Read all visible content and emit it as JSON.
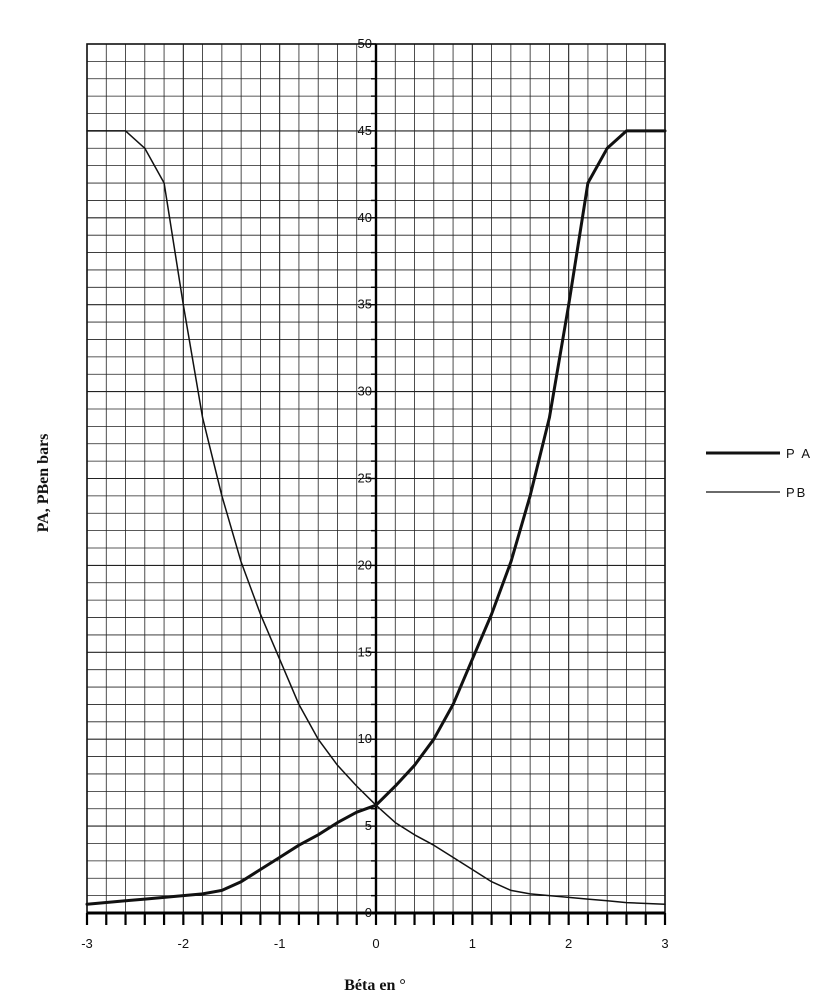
{
  "chart_data": {
    "type": "line",
    "title": "",
    "xlabel": "Béta en °",
    "ylabel": "PA, PBen bars",
    "xlim": [
      -3,
      3
    ],
    "ylim": [
      0,
      50
    ],
    "x_ticks": [
      "-3",
      "-2",
      "-1",
      "0",
      "1",
      "2",
      "3"
    ],
    "y_ticks": [
      "0",
      "5",
      "10",
      "15",
      "20",
      "25",
      "30",
      "35",
      "40",
      "45",
      "50"
    ],
    "grid": true,
    "legend_position": "right",
    "series": [
      {
        "name": "P A",
        "color": "#111111",
        "line_weight": "thick",
        "x": [
          -3.0,
          -2.6,
          -2.4,
          -2.2,
          -2.0,
          -1.8,
          -1.6,
          -1.4,
          -1.2,
          -1.0,
          -0.8,
          -0.6,
          -0.4,
          -0.2,
          0.0,
          0.2,
          0.4,
          0.6,
          0.8,
          1.0,
          1.2,
          1.4,
          1.6,
          1.8,
          2.0,
          2.2,
          2.4,
          2.6,
          3.0
        ],
        "y": [
          0.5,
          0.7,
          0.8,
          0.9,
          1.0,
          1.1,
          1.3,
          1.8,
          2.5,
          3.2,
          3.9,
          4.5,
          5.2,
          5.8,
          6.2,
          7.3,
          8.5,
          10.0,
          12.0,
          14.6,
          17.2,
          20.2,
          24.0,
          28.5,
          35.0,
          42.0,
          44.0,
          45.0,
          45.0
        ]
      },
      {
        "name": "PB",
        "color": "#111111",
        "line_weight": "thin",
        "x": [
          -3.0,
          -2.6,
          -2.4,
          -2.2,
          -2.0,
          -1.8,
          -1.6,
          -1.4,
          -1.2,
          -1.0,
          -0.8,
          -0.6,
          -0.4,
          -0.2,
          0.0,
          0.2,
          0.4,
          0.6,
          0.8,
          1.0,
          1.2,
          1.4,
          1.6,
          1.8,
          2.0,
          2.2,
          2.4,
          2.6,
          3.0
        ],
        "y": [
          45.0,
          45.0,
          44.0,
          42.0,
          35.0,
          28.5,
          24.0,
          20.2,
          17.2,
          14.6,
          12.0,
          10.0,
          8.5,
          7.3,
          6.2,
          5.2,
          4.5,
          3.9,
          3.2,
          2.5,
          1.8,
          1.3,
          1.1,
          1.0,
          0.9,
          0.8,
          0.7,
          0.6,
          0.5
        ]
      }
    ]
  }
}
